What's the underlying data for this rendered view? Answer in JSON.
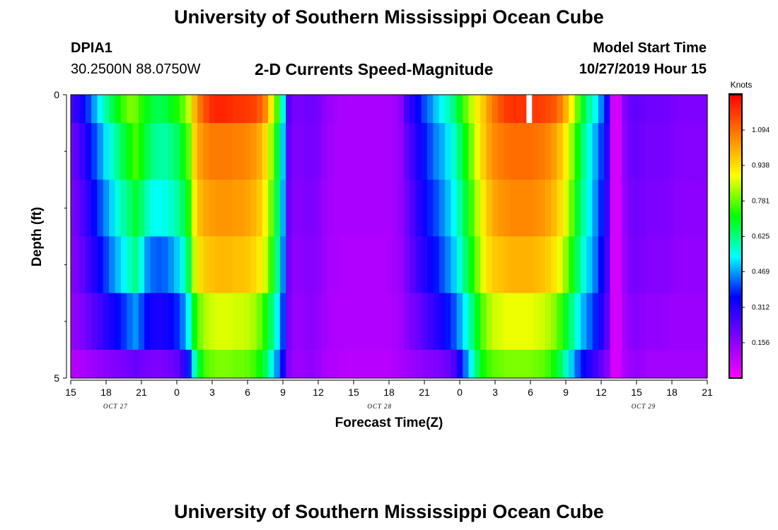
{
  "page": {
    "title_top": "University of Southern Mississippi Ocean Cube",
    "title_bottom": "University of Southern Mississippi Ocean Cube",
    "station_id": "DPIA1",
    "station_coords": "30.2500N 88.0750W",
    "chart_title": "2-D Currents Speed-Magnitude",
    "model_start_label": "Model Start Time",
    "model_start_value": "10/27/2019 Hour 15"
  },
  "chart_data": {
    "type": "heatmap",
    "title": "2-D Currents Speed-Magnitude",
    "xlabel": "Forecast Time(Z)",
    "ylabel": "Depth (ft)",
    "x_tick_labels": [
      "15",
      "18",
      "21",
      "0",
      "3",
      "6",
      "9",
      "12",
      "15",
      "18",
      "21",
      "0",
      "3",
      "6",
      "9",
      "12",
      "15",
      "18",
      "21"
    ],
    "y_tick_labels": [
      "0",
      "5"
    ],
    "y_range": [
      0,
      5
    ],
    "date_labels": [
      "OCT 27",
      "OCT 28",
      "OCT 29"
    ],
    "colorbar": {
      "label": "Knots",
      "ticks": [
        "1.094",
        "0.938",
        "0.781",
        "0.625",
        "0.469",
        "0.312",
        "0.156"
      ],
      "range": [
        0,
        1.25
      ],
      "colors": [
        "#ff00ff",
        "#7f00ff",
        "#0000ff",
        "#00ffff",
        "#00ff00",
        "#ffff00",
        "#ff8000",
        "#ff0000"
      ]
    },
    "depth_layers_ft": [
      "0-0.5",
      "0.5-1.5",
      "1.5-2.5",
      "2.5-3.5",
      "3.5-4.5",
      "4.5-5"
    ],
    "missing_cell": {
      "hour": 38.9,
      "layer": 0
    },
    "time_hours": [
      0,
      0.5,
      1,
      1.5,
      2,
      2.5,
      3,
      3.5,
      4,
      4.5,
      5,
      5.5,
      6,
      6.5,
      7,
      7.5,
      8,
      8.5,
      9,
      9.5,
      10,
      10.5,
      11,
      11.5,
      12,
      12.5,
      13,
      13.5,
      14,
      14.5,
      15,
      15.5,
      16,
      16.5,
      17,
      17.5,
      18,
      18.5,
      19,
      19.5,
      20,
      20.5,
      21,
      21.5,
      22,
      22.5,
      23,
      23.5,
      24,
      24.5,
      25,
      25.5,
      26,
      26.5,
      27,
      27.5,
      28,
      28.5,
      29,
      29.5,
      30,
      30.5,
      31,
      31.5,
      32,
      32.5,
      33,
      33.5,
      34,
      34.5,
      35,
      35.5,
      36,
      36.5,
      37,
      37.5,
      38,
      38.5,
      39,
      39.5,
      40,
      40.5,
      41,
      41.5,
      42,
      42.5,
      43,
      43.5,
      44,
      44.5,
      45,
      45.5,
      46,
      46.5,
      47,
      47.5,
      48,
      48.5,
      49,
      49.5,
      50,
      50.5,
      51,
      51.5,
      52,
      52.5,
      53,
      53.5,
      54
    ],
    "speed_knots": [
      [
        0.26,
        0.29,
        0.34,
        0.4,
        0.47,
        0.54,
        0.6,
        0.66,
        0.71,
        0.76,
        0.8,
        0.79,
        0.74,
        0.7,
        0.67,
        0.66,
        0.67,
        0.7,
        0.73,
        0.78,
        0.85,
        0.99,
        1.09,
        1.15,
        1.19,
        1.2,
        1.2,
        1.19,
        1.18,
        1.18,
        1.17,
        1.16,
        1.13,
        1.06,
        0.92,
        0.76,
        0.56,
        0.24,
        0.19,
        0.19,
        0.2,
        0.2,
        0.19,
        0.16,
        0.14,
        0.13,
        0.12,
        0.12,
        0.12,
        0.12,
        0.12,
        0.12,
        0.12,
        0.12,
        0.12,
        0.13,
        0.16,
        0.26,
        0.31,
        0.36,
        0.41,
        0.45,
        0.5,
        0.54,
        0.58,
        0.63,
        0.7,
        0.78,
        0.85,
        0.92,
        0.97,
        1.04,
        1.1,
        1.14,
        1.17,
        1.18,
        1.18,
        1.18,
        1.17,
        1.17,
        1.16,
        1.15,
        1.13,
        1.08,
        1.0,
        0.9,
        0.78,
        0.68,
        0.6,
        0.54,
        0.45,
        0.33,
        0.06,
        0.06,
        0.17,
        0.21,
        0.22,
        0.21,
        0.2,
        0.2,
        0.2,
        0.2,
        0.19,
        0.18,
        0.18,
        0.18,
        0.18,
        0.18,
        0.18
      ],
      [
        0.2,
        0.23,
        0.28,
        0.34,
        0.4,
        0.46,
        0.52,
        0.57,
        0.62,
        0.67,
        0.72,
        0.76,
        0.72,
        0.66,
        0.62,
        0.6,
        0.6,
        0.62,
        0.65,
        0.7,
        0.78,
        0.95,
        1.03,
        1.06,
        1.08,
        1.08,
        1.08,
        1.08,
        1.07,
        1.07,
        1.06,
        1.04,
        1.01,
        0.94,
        0.83,
        0.68,
        0.5,
        0.22,
        0.18,
        0.18,
        0.19,
        0.19,
        0.18,
        0.15,
        0.13,
        0.12,
        0.12,
        0.12,
        0.12,
        0.12,
        0.12,
        0.12,
        0.12,
        0.12,
        0.12,
        0.13,
        0.15,
        0.22,
        0.27,
        0.32,
        0.37,
        0.41,
        0.45,
        0.48,
        0.52,
        0.57,
        0.64,
        0.72,
        0.8,
        0.88,
        0.96,
        1.02,
        1.06,
        1.08,
        1.09,
        1.1,
        1.1,
        1.1,
        1.1,
        1.09,
        1.08,
        1.06,
        1.03,
        0.98,
        0.91,
        0.82,
        0.72,
        0.62,
        0.55,
        0.48,
        0.4,
        0.3,
        0.06,
        0.06,
        0.16,
        0.2,
        0.21,
        0.2,
        0.19,
        0.19,
        0.19,
        0.19,
        0.18,
        0.17,
        0.17,
        0.17,
        0.17,
        0.17,
        0.17
      ],
      [
        0.18,
        0.21,
        0.25,
        0.3,
        0.36,
        0.41,
        0.46,
        0.51,
        0.56,
        0.6,
        0.64,
        0.68,
        0.64,
        0.58,
        0.55,
        0.54,
        0.55,
        0.57,
        0.6,
        0.65,
        0.73,
        0.91,
        0.99,
        1.02,
        1.03,
        1.04,
        1.04,
        1.04,
        1.03,
        1.03,
        1.02,
        1.0,
        0.97,
        0.9,
        0.79,
        0.65,
        0.48,
        0.21,
        0.17,
        0.17,
        0.18,
        0.18,
        0.17,
        0.14,
        0.13,
        0.12,
        0.12,
        0.12,
        0.12,
        0.12,
        0.12,
        0.12,
        0.12,
        0.12,
        0.12,
        0.13,
        0.15,
        0.2,
        0.25,
        0.3,
        0.34,
        0.38,
        0.41,
        0.45,
        0.49,
        0.54,
        0.6,
        0.68,
        0.76,
        0.84,
        0.92,
        0.98,
        1.02,
        1.04,
        1.05,
        1.06,
        1.06,
        1.06,
        1.06,
        1.05,
        1.04,
        1.02,
        0.99,
        0.94,
        0.87,
        0.78,
        0.68,
        0.6,
        0.53,
        0.46,
        0.38,
        0.28,
        0.06,
        0.06,
        0.15,
        0.19,
        0.2,
        0.19,
        0.18,
        0.18,
        0.18,
        0.18,
        0.17,
        0.16,
        0.16,
        0.16,
        0.16,
        0.16,
        0.16
      ],
      [
        0.17,
        0.19,
        0.22,
        0.27,
        0.31,
        0.36,
        0.4,
        0.45,
        0.49,
        0.53,
        0.58,
        0.62,
        0.55,
        0.46,
        0.43,
        0.42,
        0.43,
        0.46,
        0.5,
        0.56,
        0.66,
        0.85,
        0.94,
        0.97,
        0.98,
        0.99,
        0.99,
        0.99,
        0.98,
        0.98,
        0.97,
        0.95,
        0.92,
        0.86,
        0.75,
        0.62,
        0.45,
        0.2,
        0.16,
        0.16,
        0.17,
        0.17,
        0.16,
        0.14,
        0.12,
        0.12,
        0.11,
        0.11,
        0.11,
        0.11,
        0.11,
        0.11,
        0.11,
        0.11,
        0.12,
        0.13,
        0.14,
        0.19,
        0.23,
        0.27,
        0.31,
        0.34,
        0.37,
        0.41,
        0.45,
        0.5,
        0.56,
        0.64,
        0.72,
        0.8,
        0.88,
        0.94,
        0.97,
        0.98,
        0.99,
        1.0,
        1.0,
        1.0,
        1.0,
        0.99,
        0.98,
        0.96,
        0.93,
        0.88,
        0.81,
        0.73,
        0.64,
        0.56,
        0.5,
        0.44,
        0.36,
        0.26,
        0.06,
        0.06,
        0.14,
        0.18,
        0.19,
        0.18,
        0.17,
        0.17,
        0.17,
        0.17,
        0.16,
        0.15,
        0.15,
        0.15,
        0.15,
        0.15,
        0.15
      ],
      [
        0.14,
        0.16,
        0.18,
        0.21,
        0.24,
        0.27,
        0.3,
        0.33,
        0.36,
        0.39,
        0.43,
        0.46,
        0.41,
        0.35,
        0.33,
        0.32,
        0.33,
        0.35,
        0.38,
        0.44,
        0.54,
        0.72,
        0.8,
        0.84,
        0.86,
        0.87,
        0.87,
        0.87,
        0.86,
        0.86,
        0.85,
        0.83,
        0.79,
        0.73,
        0.64,
        0.53,
        0.4,
        0.19,
        0.15,
        0.15,
        0.16,
        0.16,
        0.15,
        0.13,
        0.12,
        0.11,
        0.11,
        0.11,
        0.11,
        0.11,
        0.11,
        0.11,
        0.11,
        0.11,
        0.11,
        0.12,
        0.13,
        0.16,
        0.19,
        0.21,
        0.24,
        0.27,
        0.3,
        0.33,
        0.37,
        0.41,
        0.47,
        0.54,
        0.62,
        0.7,
        0.78,
        0.83,
        0.86,
        0.87,
        0.88,
        0.88,
        0.88,
        0.88,
        0.88,
        0.87,
        0.86,
        0.84,
        0.81,
        0.76,
        0.69,
        0.62,
        0.55,
        0.48,
        0.43,
        0.38,
        0.31,
        0.23,
        0.06,
        0.06,
        0.13,
        0.16,
        0.17,
        0.16,
        0.15,
        0.15,
        0.15,
        0.15,
        0.14,
        0.14,
        0.14,
        0.14,
        0.14,
        0.14,
        0.14
      ],
      [
        0.1,
        0.11,
        0.12,
        0.13,
        0.14,
        0.15,
        0.16,
        0.17,
        0.18,
        0.19,
        0.2,
        0.21,
        0.2,
        0.19,
        0.18,
        0.18,
        0.19,
        0.2,
        0.22,
        0.28,
        0.38,
        0.58,
        0.7,
        0.77,
        0.79,
        0.8,
        0.8,
        0.8,
        0.79,
        0.79,
        0.78,
        0.76,
        0.72,
        0.66,
        0.56,
        0.46,
        0.34,
        0.17,
        0.14,
        0.14,
        0.15,
        0.15,
        0.14,
        0.12,
        0.11,
        0.11,
        0.1,
        0.1,
        0.1,
        0.1,
        0.1,
        0.1,
        0.1,
        0.1,
        0.1,
        0.11,
        0.12,
        0.13,
        0.14,
        0.15,
        0.16,
        0.17,
        0.18,
        0.19,
        0.21,
        0.25,
        0.33,
        0.44,
        0.55,
        0.65,
        0.72,
        0.76,
        0.78,
        0.79,
        0.8,
        0.8,
        0.8,
        0.8,
        0.8,
        0.79,
        0.78,
        0.76,
        0.72,
        0.66,
        0.58,
        0.5,
        0.42,
        0.36,
        0.31,
        0.27,
        0.22,
        0.17,
        0.06,
        0.06,
        0.12,
        0.14,
        0.15,
        0.14,
        0.13,
        0.13,
        0.13,
        0.13,
        0.13,
        0.13,
        0.13,
        0.13,
        0.13,
        0.13,
        0.13
      ]
    ]
  }
}
